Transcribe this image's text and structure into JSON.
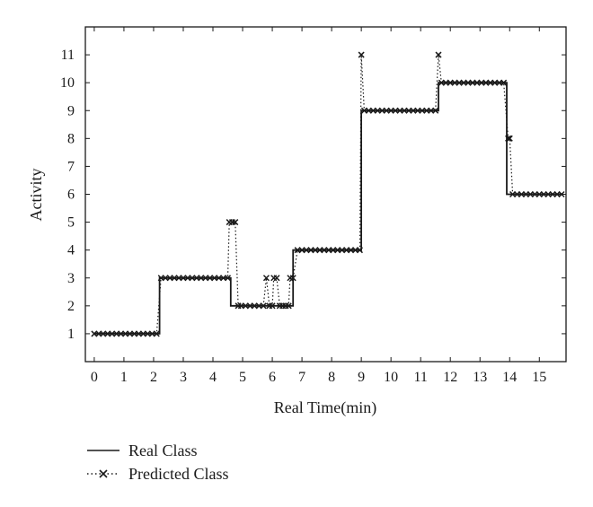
{
  "chart_data": {
    "type": "line",
    "xlabel": "Real Time(min)",
    "ylabel": "Activity",
    "xlim": [
      -0.3,
      15.9
    ],
    "ylim": [
      0,
      12
    ],
    "xticks": [
      0,
      1,
      2,
      3,
      4,
      5,
      6,
      7,
      8,
      9,
      10,
      11,
      12,
      13,
      14,
      15
    ],
    "yticks": [
      1,
      2,
      3,
      4,
      5,
      6,
      7,
      8,
      9,
      10,
      11
    ],
    "grid": false,
    "legend_position": "bottom-left",
    "series": [
      {
        "name": "Real Class",
        "style": "solid",
        "color": "#1a1a1a",
        "x": [
          0,
          2.2,
          2.2,
          4.6,
          4.6,
          6.7,
          6.7,
          9.0,
          9.0,
          11.6,
          11.6,
          13.9,
          13.9,
          15.8
        ],
        "y": [
          1,
          1,
          3,
          3,
          2,
          2,
          4,
          4,
          9,
          9,
          10,
          10,
          6,
          6
        ]
      },
      {
        "name": "Predicted Class",
        "style": "dotted",
        "marker": "x",
        "color": "#1a1a1a",
        "x": [
          0,
          0.15,
          0.3,
          0.45,
          0.6,
          0.75,
          0.9,
          1.05,
          1.2,
          1.35,
          1.5,
          1.65,
          1.8,
          1.95,
          2.1,
          2.25,
          2.4,
          2.55,
          2.7,
          2.85,
          3.0,
          3.15,
          3.3,
          3.45,
          3.6,
          3.75,
          3.9,
          4.05,
          4.2,
          4.35,
          4.5,
          4.55,
          4.65,
          4.75,
          4.85,
          4.95,
          5.1,
          5.25,
          5.4,
          5.55,
          5.7,
          5.8,
          5.9,
          6.0,
          6.05,
          6.15,
          6.25,
          6.35,
          6.45,
          6.55,
          6.6,
          6.7,
          6.85,
          7.0,
          7.15,
          7.3,
          7.45,
          7.6,
          7.75,
          7.9,
          8.05,
          8.2,
          8.35,
          8.5,
          8.65,
          8.8,
          8.95,
          9.0,
          9.1,
          9.25,
          9.4,
          9.55,
          9.7,
          9.85,
          10.0,
          10.15,
          10.3,
          10.45,
          10.6,
          10.75,
          10.9,
          11.05,
          11.2,
          11.35,
          11.5,
          11.6,
          11.7,
          11.85,
          12.0,
          12.15,
          12.3,
          12.45,
          12.6,
          12.75,
          12.9,
          13.05,
          13.2,
          13.35,
          13.5,
          13.65,
          13.8,
          13.95,
          14.0,
          14.1,
          14.25,
          14.4,
          14.55,
          14.7,
          14.85,
          15.0,
          15.15,
          15.3,
          15.45,
          15.6,
          15.75
        ],
        "y": [
          1,
          1,
          1,
          1,
          1,
          1,
          1,
          1,
          1,
          1,
          1,
          1,
          1,
          1,
          1,
          3,
          3,
          3,
          3,
          3,
          3,
          3,
          3,
          3,
          3,
          3,
          3,
          3,
          3,
          3,
          3,
          5,
          5,
          5,
          2,
          2,
          2,
          2,
          2,
          2,
          2,
          3,
          2,
          2,
          3,
          3,
          2,
          2,
          2,
          2,
          3,
          3,
          4,
          4,
          4,
          4,
          4,
          4,
          4,
          4,
          4,
          4,
          4,
          4,
          4,
          4,
          4,
          11,
          9,
          9,
          9,
          9,
          9,
          9,
          9,
          9,
          9,
          9,
          9,
          9,
          9,
          9,
          9,
          9,
          9,
          11,
          10,
          10,
          10,
          10,
          10,
          10,
          10,
          10,
          10,
          10,
          10,
          10,
          10,
          10,
          10,
          8,
          8,
          6,
          6,
          6,
          6,
          6,
          6,
          6,
          6,
          6,
          6,
          6,
          6
        ]
      }
    ]
  }
}
